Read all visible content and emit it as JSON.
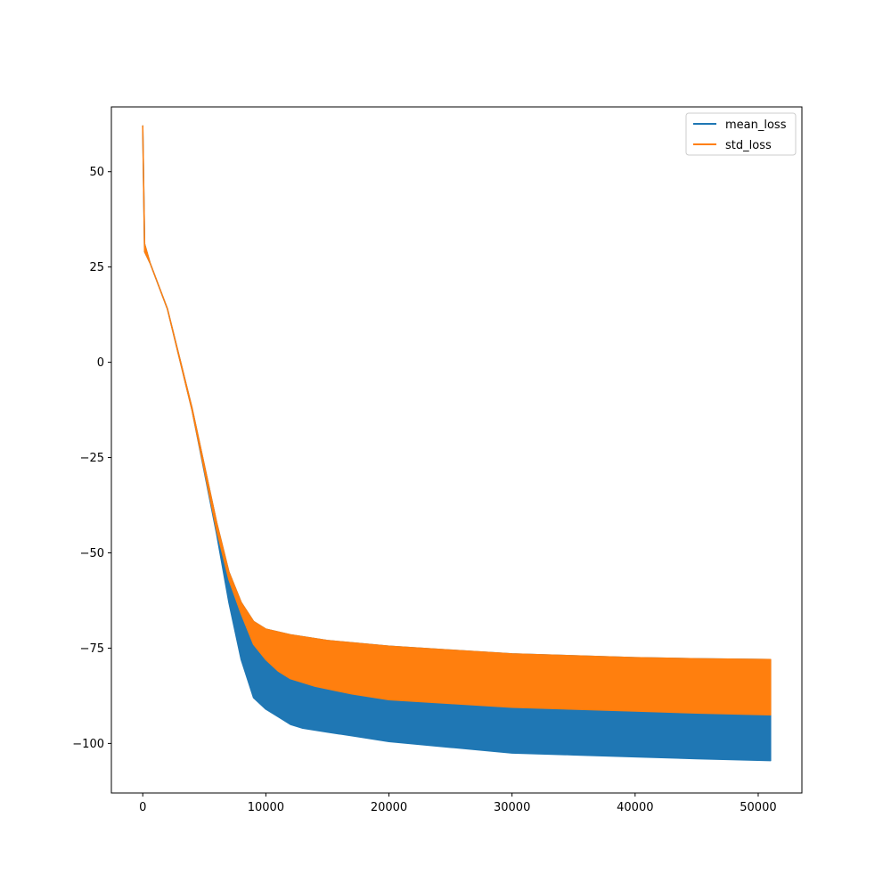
{
  "chart_data": {
    "type": "line",
    "title": "",
    "xlabel": "",
    "ylabel": "",
    "xlim": [
      -2550,
      53550
    ],
    "ylim": [
      -113,
      67
    ],
    "xticks": [
      0,
      10000,
      20000,
      30000,
      40000,
      50000
    ],
    "xtick_labels": [
      "0",
      "10000",
      "20000",
      "30000",
      "40000",
      "50000"
    ],
    "yticks": [
      50,
      25,
      0,
      -25,
      -50,
      -75,
      -100
    ],
    "ytick_labels": [
      "50",
      "25",
      "0",
      "−25",
      "−50",
      "−75",
      "−100"
    ],
    "grid": false,
    "legend_position": "top-right",
    "series": [
      {
        "name": "mean_loss",
        "color": "#1f77b4",
        "upper": [
          [
            0,
            62
          ],
          [
            150,
            31
          ],
          [
            600,
            26
          ],
          [
            2000,
            14
          ],
          [
            4000,
            -12
          ],
          [
            6000,
            -42
          ],
          [
            7000,
            -55
          ],
          [
            8000,
            -63
          ],
          [
            9000,
            -68
          ],
          [
            10000,
            -70
          ],
          [
            12000,
            -71.5
          ],
          [
            15000,
            -73
          ],
          [
            20000,
            -74.5
          ],
          [
            25000,
            -75.5
          ],
          [
            30000,
            -76.5
          ],
          [
            35000,
            -77
          ],
          [
            40000,
            -77.5
          ],
          [
            45000,
            -77.8
          ],
          [
            51000,
            -78
          ]
        ],
        "lower": [
          [
            0,
            62
          ],
          [
            150,
            29
          ],
          [
            600,
            26
          ],
          [
            2000,
            14
          ],
          [
            4000,
            -12.5
          ],
          [
            6000,
            -45
          ],
          [
            7000,
            -63
          ],
          [
            8000,
            -78
          ],
          [
            9000,
            -88
          ],
          [
            10000,
            -91
          ],
          [
            11000,
            -93
          ],
          [
            12000,
            -95
          ],
          [
            13000,
            -96
          ],
          [
            15000,
            -97
          ],
          [
            17000,
            -98
          ],
          [
            20000,
            -99.5
          ],
          [
            25000,
            -101
          ],
          [
            30000,
            -102.5
          ],
          [
            35000,
            -103
          ],
          [
            40000,
            -103.5
          ],
          [
            45000,
            -104
          ],
          [
            51000,
            -104.5
          ]
        ]
      },
      {
        "name": "std_loss",
        "color": "#ff7f0e",
        "upper": [
          [
            0,
            62
          ],
          [
            150,
            31
          ],
          [
            600,
            26
          ],
          [
            2000,
            14
          ],
          [
            4000,
            -12
          ],
          [
            6000,
            -42
          ],
          [
            7000,
            -55
          ],
          [
            8000,
            -63
          ],
          [
            9000,
            -68
          ],
          [
            10000,
            -70
          ],
          [
            12000,
            -71.5
          ],
          [
            15000,
            -73
          ],
          [
            20000,
            -74.5
          ],
          [
            25000,
            -75.5
          ],
          [
            30000,
            -76.5
          ],
          [
            35000,
            -77
          ],
          [
            40000,
            -77.5
          ],
          [
            45000,
            -77.8
          ],
          [
            51000,
            -78
          ]
        ],
        "lower": [
          [
            0,
            62
          ],
          [
            150,
            29
          ],
          [
            600,
            26
          ],
          [
            2000,
            14
          ],
          [
            4000,
            -12.5
          ],
          [
            6000,
            -44
          ],
          [
            7000,
            -57
          ],
          [
            8000,
            -66
          ],
          [
            9000,
            -74
          ],
          [
            10000,
            -78
          ],
          [
            11000,
            -81
          ],
          [
            12000,
            -83
          ],
          [
            14000,
            -85
          ],
          [
            17000,
            -87
          ],
          [
            20000,
            -88.5
          ],
          [
            25000,
            -89.5
          ],
          [
            30000,
            -90.5
          ],
          [
            35000,
            -91
          ],
          [
            40000,
            -91.5
          ],
          [
            45000,
            -92
          ],
          [
            51000,
            -92.5
          ]
        ]
      }
    ]
  }
}
